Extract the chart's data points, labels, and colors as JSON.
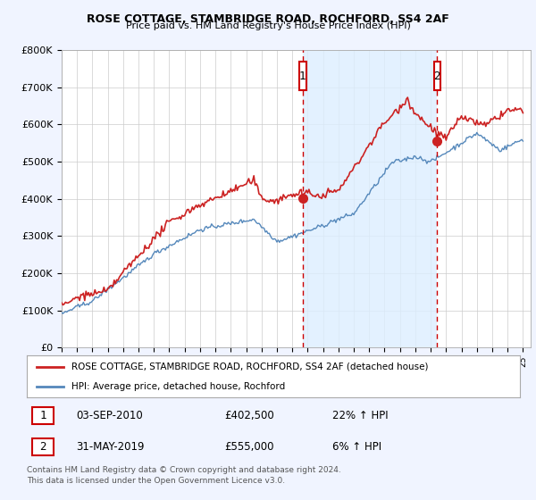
{
  "title1": "ROSE COTTAGE, STAMBRIDGE ROAD, ROCHFORD, SS4 2AF",
  "title2": "Price paid vs. HM Land Registry's House Price Index (HPI)",
  "legend1": "ROSE COTTAGE, STAMBRIDGE ROAD, ROCHFORD, SS4 2AF (detached house)",
  "legend2": "HPI: Average price, detached house, Rochford",
  "sale1_date": "03-SEP-2010",
  "sale1_price": 402500,
  "sale1_year": 2010.67,
  "sale2_date": "31-MAY-2019",
  "sale2_price": 555000,
  "sale2_year": 2019.42,
  "sale1_hpi": "22% ↑ HPI",
  "sale2_hpi": "6% ↑ HPI",
  "footer": "Contains HM Land Registry data © Crown copyright and database right 2024.\nThis data is licensed under the Open Government Licence v3.0.",
  "ylim": [
    0,
    800000
  ],
  "bg_color": "#f0f4ff",
  "plot_bg": "#ffffff",
  "fill_color": "#ddeeff",
  "red_color": "#cc2222",
  "blue_color": "#5588bb",
  "vline_color": "#cc0000",
  "box_color": "#cc0000",
  "grid_color": "#cccccc"
}
